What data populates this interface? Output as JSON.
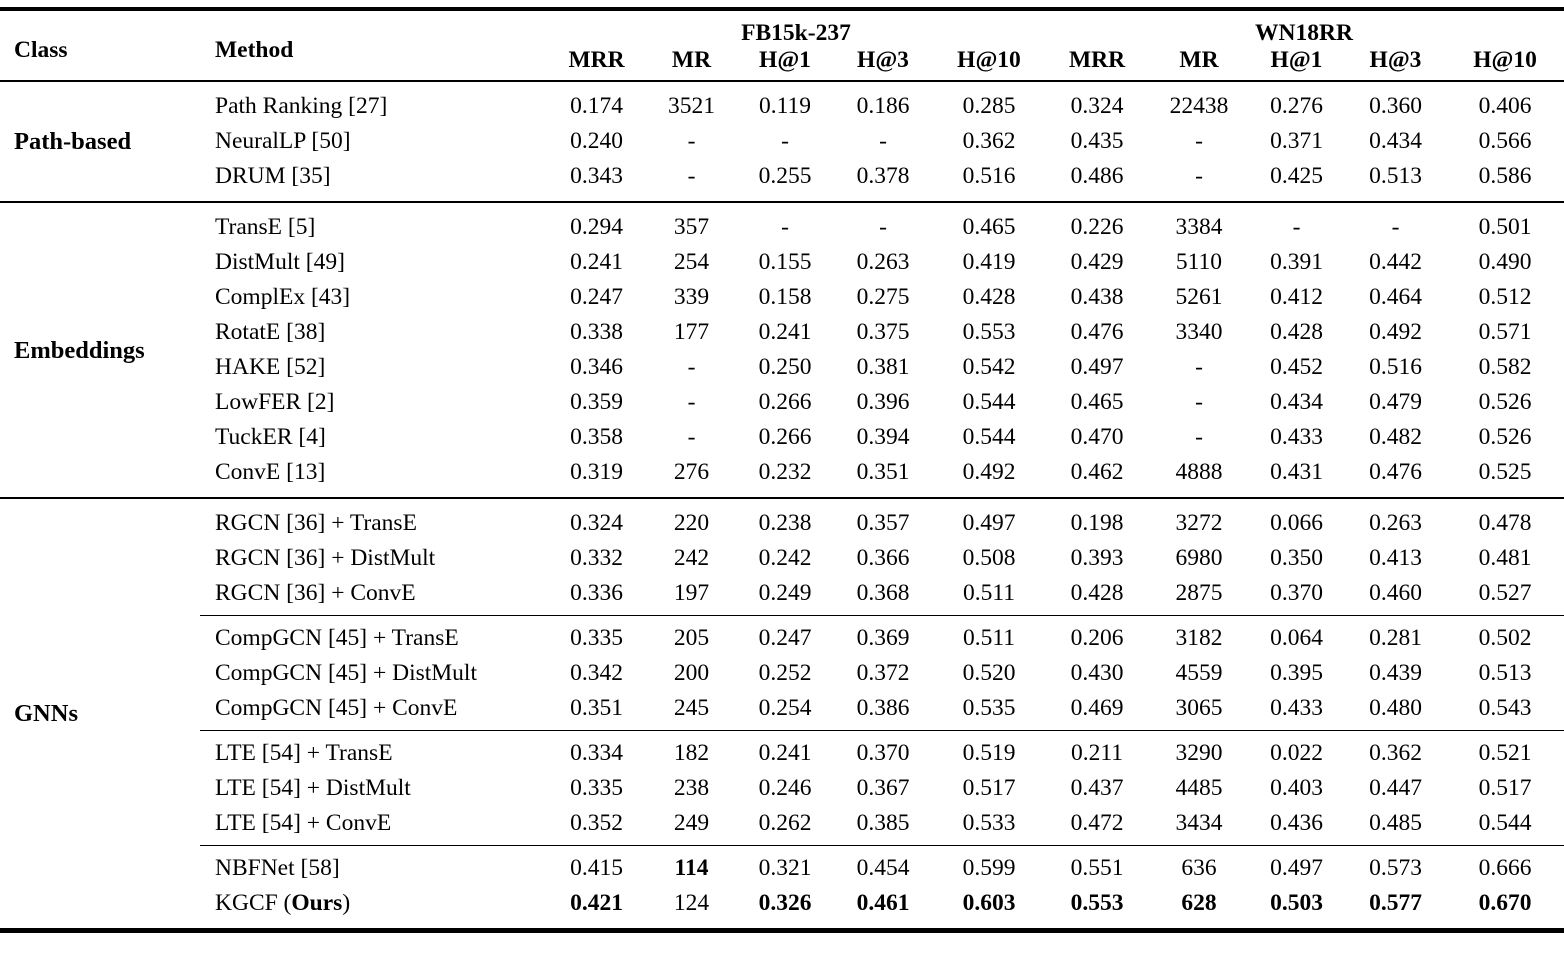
{
  "table": {
    "col_headers": {
      "class": "Class",
      "method": "Method"
    },
    "datasets": [
      {
        "name": "FB15k-237"
      },
      {
        "name": "WN18RR"
      }
    ],
    "metrics": [
      "MRR",
      "MR",
      "H@1",
      "H@3",
      "H@10"
    ],
    "groups": [
      {
        "class": "Path-based",
        "subgroups": [
          {
            "rows": [
              {
                "method": "Path Ranking [27]",
                "values": [
                  "0.174",
                  "3521",
                  "0.119",
                  "0.186",
                  "0.285",
                  "0.324",
                  "22438",
                  "0.276",
                  "0.360",
                  "0.406"
                ],
                "bold": []
              },
              {
                "method": "NeuralLP [50]",
                "values": [
                  "0.240",
                  "-",
                  "-",
                  "-",
                  "0.362",
                  "0.435",
                  "-",
                  "0.371",
                  "0.434",
                  "0.566"
                ],
                "bold": []
              },
              {
                "method": "DRUM [35]",
                "values": [
                  "0.343",
                  "-",
                  "0.255",
                  "0.378",
                  "0.516",
                  "0.486",
                  "-",
                  "0.425",
                  "0.513",
                  "0.586"
                ],
                "bold": []
              }
            ]
          }
        ]
      },
      {
        "class": "Embeddings",
        "subgroups": [
          {
            "rows": [
              {
                "method": "TransE [5]",
                "values": [
                  "0.294",
                  "357",
                  "-",
                  "-",
                  "0.465",
                  "0.226",
                  "3384",
                  "-",
                  "-",
                  "0.501"
                ],
                "bold": []
              },
              {
                "method": "DistMult [49]",
                "values": [
                  "0.241",
                  "254",
                  "0.155",
                  "0.263",
                  "0.419",
                  "0.429",
                  "5110",
                  "0.391",
                  "0.442",
                  "0.490"
                ],
                "bold": []
              },
              {
                "method": "ComplEx [43]",
                "values": [
                  "0.247",
                  "339",
                  "0.158",
                  "0.275",
                  "0.428",
                  "0.438",
                  "5261",
                  "0.412",
                  "0.464",
                  "0.512"
                ],
                "bold": []
              },
              {
                "method": "RotatE [38]",
                "values": [
                  "0.338",
                  "177",
                  "0.241",
                  "0.375",
                  "0.553",
                  "0.476",
                  "3340",
                  "0.428",
                  "0.492",
                  "0.571"
                ],
                "bold": []
              },
              {
                "method": "HAKE [52]",
                "values": [
                  "0.346",
                  "-",
                  "0.250",
                  "0.381",
                  "0.542",
                  "0.497",
                  "-",
                  "0.452",
                  "0.516",
                  "0.582"
                ],
                "bold": []
              },
              {
                "method": "LowFER [2]",
                "values": [
                  "0.359",
                  "-",
                  "0.266",
                  "0.396",
                  "0.544",
                  "0.465",
                  "-",
                  "0.434",
                  "0.479",
                  "0.526"
                ],
                "bold": []
              },
              {
                "method": "TuckER [4]",
                "values": [
                  "0.358",
                  "-",
                  "0.266",
                  "0.394",
                  "0.544",
                  "0.470",
                  "-",
                  "0.433",
                  "0.482",
                  "0.526"
                ],
                "bold": []
              },
              {
                "method": "ConvE [13]",
                "values": [
                  "0.319",
                  "276",
                  "0.232",
                  "0.351",
                  "0.492",
                  "0.462",
                  "4888",
                  "0.431",
                  "0.476",
                  "0.525"
                ],
                "bold": []
              }
            ]
          }
        ]
      },
      {
        "class": "GNNs",
        "subgroups": [
          {
            "rows": [
              {
                "method": "RGCN [36] + TransE",
                "values": [
                  "0.324",
                  "220",
                  "0.238",
                  "0.357",
                  "0.497",
                  "0.198",
                  "3272",
                  "0.066",
                  "0.263",
                  "0.478"
                ],
                "bold": []
              },
              {
                "method": "RGCN [36] + DistMult",
                "values": [
                  "0.332",
                  "242",
                  "0.242",
                  "0.366",
                  "0.508",
                  "0.393",
                  "6980",
                  "0.350",
                  "0.413",
                  "0.481"
                ],
                "bold": []
              },
              {
                "method": "RGCN [36] + ConvE",
                "values": [
                  "0.336",
                  "197",
                  "0.249",
                  "0.368",
                  "0.511",
                  "0.428",
                  "2875",
                  "0.370",
                  "0.460",
                  "0.527"
                ],
                "bold": []
              }
            ]
          },
          {
            "rows": [
              {
                "method": "CompGCN [45] + TransE",
                "values": [
                  "0.335",
                  "205",
                  "0.247",
                  "0.369",
                  "0.511",
                  "0.206",
                  "3182",
                  "0.064",
                  "0.281",
                  "0.502"
                ],
                "bold": []
              },
              {
                "method": "CompGCN [45] + DistMult",
                "values": [
                  "0.342",
                  "200",
                  "0.252",
                  "0.372",
                  "0.520",
                  "0.430",
                  "4559",
                  "0.395",
                  "0.439",
                  "0.513"
                ],
                "bold": []
              },
              {
                "method": "CompGCN [45] + ConvE",
                "values": [
                  "0.351",
                  "245",
                  "0.254",
                  "0.386",
                  "0.535",
                  "0.469",
                  "3065",
                  "0.433",
                  "0.480",
                  "0.543"
                ],
                "bold": []
              }
            ]
          },
          {
            "rows": [
              {
                "method": "LTE [54] + TransE",
                "values": [
                  "0.334",
                  "182",
                  "0.241",
                  "0.370",
                  "0.519",
                  "0.211",
                  "3290",
                  "0.022",
                  "0.362",
                  "0.521"
                ],
                "bold": []
              },
              {
                "method": "LTE [54] + DistMult",
                "values": [
                  "0.335",
                  "238",
                  "0.246",
                  "0.367",
                  "0.517",
                  "0.437",
                  "4485",
                  "0.403",
                  "0.447",
                  "0.517"
                ],
                "bold": []
              },
              {
                "method": "LTE [54] + ConvE",
                "values": [
                  "0.352",
                  "249",
                  "0.262",
                  "0.385",
                  "0.533",
                  "0.472",
                  "3434",
                  "0.436",
                  "0.485",
                  "0.544"
                ],
                "bold": []
              }
            ]
          },
          {
            "rows": [
              {
                "method": "NBFNet [58]",
                "values": [
                  "0.415",
                  "114",
                  "0.321",
                  "0.454",
                  "0.599",
                  "0.551",
                  "636",
                  "0.497",
                  "0.573",
                  "0.666"
                ],
                "bold": [
                  1
                ]
              },
              {
                "method": "KGCF (Ours)",
                "bold_segment": "Ours",
                "values": [
                  "0.421",
                  "124",
                  "0.326",
                  "0.461",
                  "0.603",
                  "0.553",
                  "628",
                  "0.503",
                  "0.577",
                  "0.670"
                ],
                "bold": [
                  0,
                  2,
                  3,
                  4,
                  5,
                  6,
                  7,
                  8,
                  9
                ]
              }
            ]
          }
        ]
      }
    ]
  }
}
